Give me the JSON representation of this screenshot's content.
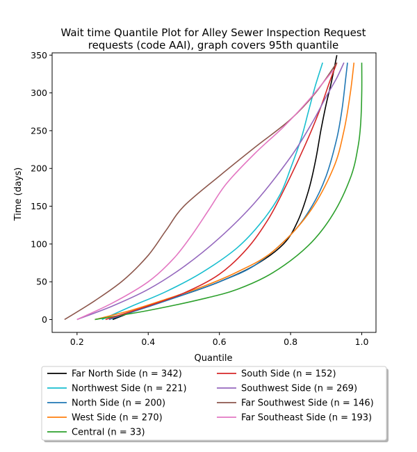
{
  "chart_data": {
    "type": "line",
    "title_lines": [
      "Wait time Quantile Plot for Alley Sewer Inspection Request",
      "requests (code AAI), graph covers 95th quantile"
    ],
    "xlabel": "Quantile",
    "ylabel": "Time (days)",
    "xlim": [
      0.13,
      1.04
    ],
    "ylim": [
      -17,
      353
    ],
    "xticks": [
      0.2,
      0.4,
      0.6,
      0.8,
      1.0
    ],
    "xtick_labels": [
      "0.2",
      "0.4",
      "0.6",
      "0.8",
      "1.0"
    ],
    "yticks": [
      0,
      50,
      100,
      150,
      200,
      250,
      300,
      350
    ],
    "ytick_labels": [
      "0",
      "50",
      "100",
      "150",
      "200",
      "250",
      "300",
      "350"
    ],
    "grid": false,
    "legend_placement": "below plot, two columns",
    "series": [
      {
        "name": "Far North Side (n = 342)",
        "color": "#000000",
        "x": [
          0.3,
          0.4,
          0.5,
          0.6,
          0.7,
          0.78,
          0.82,
          0.85,
          0.87,
          0.885,
          0.9,
          0.915,
          0.93
        ],
        "y": [
          0,
          18,
          33,
          50,
          72,
          100,
          130,
          170,
          210,
          250,
          285,
          315,
          350
        ]
      },
      {
        "name": "Northwest Side (n = 221)",
        "color": "#17becf",
        "x": [
          0.27,
          0.35,
          0.45,
          0.55,
          0.65,
          0.72,
          0.77,
          0.8,
          0.83,
          0.85,
          0.87,
          0.89
        ],
        "y": [
          0,
          17,
          37,
          62,
          95,
          130,
          165,
          200,
          240,
          275,
          310,
          340
        ]
      },
      {
        "name": "North Side (n = 200)",
        "color": "#1f77b4",
        "x": [
          0.29,
          0.4,
          0.5,
          0.6,
          0.7,
          0.8,
          0.86,
          0.9,
          0.93,
          0.945,
          0.955,
          0.96
        ],
        "y": [
          0,
          17,
          33,
          50,
          72,
          112,
          150,
          190,
          240,
          280,
          320,
          340
        ]
      },
      {
        "name": "West Side (n = 270)",
        "color": "#ff7f0e",
        "x": [
          0.25,
          0.35,
          0.45,
          0.55,
          0.65,
          0.75,
          0.85,
          0.92,
          0.95,
          0.968,
          0.978
        ],
        "y": [
          0,
          12,
          27,
          43,
          63,
          90,
          140,
          200,
          250,
          300,
          340
        ]
      },
      {
        "name": "Central (n = 33)",
        "color": "#2ca02c",
        "x": [
          0.25,
          0.4,
          0.55,
          0.65,
          0.75,
          0.85,
          0.92,
          0.97,
          0.99,
          0.997,
          1.0,
          1.0
        ],
        "y": [
          0,
          12,
          27,
          40,
          62,
          98,
          140,
          190,
          230,
          260,
          300,
          340
        ]
      },
      {
        "name": "South Side (n = 152)",
        "color": "#d62728",
        "x": [
          0.28,
          0.4,
          0.5,
          0.6,
          0.68,
          0.74,
          0.79,
          0.84,
          0.88,
          0.91,
          0.93
        ],
        "y": [
          0,
          18,
          35,
          60,
          95,
          135,
          180,
          230,
          275,
          315,
          340
        ]
      },
      {
        "name": "Southwest Side (n = 269)",
        "color": "#9467bd",
        "x": [
          0.2,
          0.3,
          0.4,
          0.5,
          0.6,
          0.7,
          0.8,
          0.86,
          0.9,
          0.93,
          0.95
        ],
        "y": [
          0,
          18,
          40,
          70,
          108,
          155,
          215,
          260,
          295,
          320,
          340
        ]
      },
      {
        "name": "Far Southwest Side (n = 146)",
        "color": "#8c564b",
        "x": [
          0.165,
          0.25,
          0.33,
          0.4,
          0.45,
          0.5,
          0.6,
          0.7,
          0.8,
          0.87,
          0.93
        ],
        "y": [
          0,
          25,
          52,
          85,
          118,
          150,
          190,
          228,
          265,
          300,
          340
        ]
      },
      {
        "name": "Far Southeast Side (n = 193)",
        "color": "#e377c2",
        "x": [
          0.2,
          0.3,
          0.4,
          0.47,
          0.52,
          0.57,
          0.62,
          0.7,
          0.78,
          0.85,
          0.92
        ],
        "y": [
          0,
          22,
          50,
          80,
          110,
          145,
          180,
          220,
          255,
          290,
          330
        ]
      }
    ]
  }
}
